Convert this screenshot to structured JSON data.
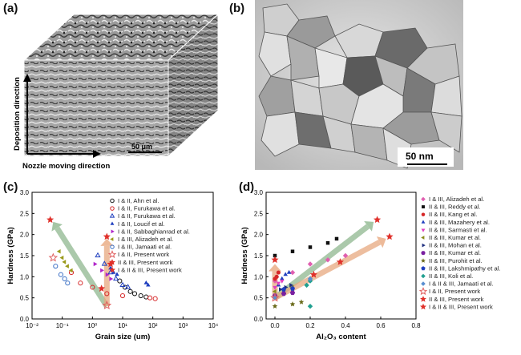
{
  "panels": {
    "a": {
      "label": "(a)",
      "scale_bar": "50 μm",
      "y_arrow_label": "Deposition direction",
      "x_arrow_label": "Nozzle moving direction"
    },
    "b": {
      "label": "(b)",
      "scale_bar": "50 nm"
    },
    "c": {
      "label": "(c)"
    },
    "d": {
      "label": "(d)"
    }
  },
  "chart_data": [
    {
      "type": "scatter",
      "panel": "c",
      "xlabel": "Grain size (um)",
      "ylabel": "Hardness (GPa)",
      "x_scale": "log",
      "xlim": [
        0.01,
        10000
      ],
      "ylim": [
        0,
        3.0
      ],
      "x_ticks": [
        "10⁻²",
        "10⁻¹",
        "10⁰",
        "10¹",
        "10²",
        "10³",
        "10⁴"
      ],
      "y_ticks": [
        "0.0",
        "0.5",
        "1.0",
        "1.5",
        "2.0",
        "2.5",
        "3.0"
      ],
      "legend_position": "top-right",
      "series": [
        {
          "name": "I & II, Ahn et al.",
          "color": "#111111",
          "marker": "circle-open",
          "points": [
            [
              8,
              0.9
            ],
            [
              12,
              0.75
            ],
            [
              18,
              0.65
            ],
            [
              25,
              0.6
            ],
            [
              40,
              0.55
            ],
            [
              60,
              0.52
            ]
          ]
        },
        {
          "name": "I & II, Furukawa et al.",
          "color": "#d62728",
          "marker": "circle-open",
          "points": [
            [
              0.2,
              1.1
            ],
            [
              0.4,
              0.85
            ],
            [
              1,
              0.75
            ],
            [
              3,
              0.6
            ],
            [
              10,
              0.55
            ],
            [
              80,
              0.5
            ],
            [
              120,
              0.48
            ]
          ]
        },
        {
          "name": "I & II, Furukawa et al.",
          "color": "#1f3fbf",
          "marker": "triangle-open",
          "points": [
            [
              1.5,
              1.5
            ],
            [
              2.5,
              1.3
            ],
            [
              4,
              1.1
            ],
            [
              6,
              0.95
            ],
            [
              10,
              0.8
            ],
            [
              15,
              0.75
            ]
          ]
        },
        {
          "name": "I & II, Loucif et al.",
          "color": "#1f3fbf",
          "marker": "triangle-up",
          "points": [
            [
              4,
              1.2
            ],
            [
              5,
              1.1
            ],
            [
              6.5,
              1.05
            ],
            [
              60,
              0.85
            ],
            [
              70,
              0.8
            ]
          ]
        },
        {
          "name": "I & II, Sabbaghianrad et al.",
          "color": "#b025c9",
          "marker": "triangle-right",
          "points": [
            [
              1.2,
              1.3
            ],
            [
              2,
              1.15
            ],
            [
              3,
              1.05
            ],
            [
              4,
              0.95
            ]
          ]
        },
        {
          "name": "I & III, Alizadeh et al.",
          "color": "#9a9a1a",
          "marker": "triangle-left",
          "points": [
            [
              0.08,
              1.6
            ],
            [
              0.1,
              1.45
            ],
            [
              0.12,
              1.35
            ],
            [
              0.15,
              1.25
            ],
            [
              0.2,
              1.15
            ]
          ]
        },
        {
          "name": "I & III, Jamaati et al.",
          "color": "#3a6fc4",
          "marker": "circle-open",
          "points": [
            [
              0.06,
              1.25
            ],
            [
              0.09,
              1.05
            ],
            [
              0.12,
              0.95
            ],
            [
              0.15,
              0.85
            ]
          ]
        },
        {
          "name": "I & II, Present work",
          "color": "#e06060",
          "marker": "star-open",
          "points": [
            [
              0.05,
              1.45
            ],
            [
              3,
              0.32
            ]
          ]
        },
        {
          "name": "II & III, Present work",
          "color": "#e0302a",
          "marker": "star-filled",
          "points": [
            [
              3,
              1.95
            ],
            [
              2,
              0.72
            ]
          ]
        },
        {
          "name": "I & II & III, Present work",
          "color": "#e0302a",
          "marker": "star-filled",
          "points": [
            [
              0.04,
              2.35
            ],
            [
              4,
              1.3
            ]
          ]
        }
      ],
      "arrows": [
        {
          "from": [
            3,
            0.3
          ],
          "to": [
            0.05,
            2.3
          ],
          "color": "#8fb88f"
        },
        {
          "from": [
            3,
            0.3
          ],
          "to": [
            3,
            1.9
          ],
          "color": "#e8a980"
        }
      ]
    },
    {
      "type": "scatter",
      "panel": "d",
      "xlabel": "Al₂O₃ content",
      "ylabel": "Hardness (GPa)",
      "xlim": [
        -0.05,
        0.8
      ],
      "ylim": [
        0,
        3.0
      ],
      "x_ticks": [
        "0.0",
        "0.2",
        "0.4",
        "0.6",
        "0.8"
      ],
      "y_ticks": [
        "0.0",
        "0.5",
        "1.0",
        "1.5",
        "2.0",
        "2.5",
        "3.0"
      ],
      "legend_position": "right",
      "series": [
        {
          "name": "I & III, Alizadeh et al.",
          "color": "#e05fb0",
          "marker": "diamond",
          "points": [
            [
              0.0,
              0.9
            ],
            [
              0.1,
              1.1
            ],
            [
              0.2,
              1.3
            ],
            [
              0.3,
              1.4
            ],
            [
              0.4,
              1.5
            ]
          ]
        },
        {
          "name": "II & III, Reddy et al.",
          "color": "#111111",
          "marker": "square",
          "points": [
            [
              0.0,
              1.5
            ],
            [
              0.1,
              1.6
            ],
            [
              0.2,
              1.7
            ],
            [
              0.3,
              1.8
            ],
            [
              0.35,
              1.9
            ]
          ]
        },
        {
          "name": "II & III, Kang et al.",
          "color": "#d62728",
          "marker": "circle",
          "points": [
            [
              0.0,
              0.95
            ],
            [
              0.01,
              1.0
            ],
            [
              0.02,
              1.1
            ]
          ]
        },
        {
          "name": "II & III, Mazahery et al.",
          "color": "#1f3fbf",
          "marker": "triangle-up",
          "points": [
            [
              0.02,
              0.8
            ],
            [
              0.04,
              0.95
            ],
            [
              0.06,
              1.05
            ],
            [
              0.08,
              1.1
            ]
          ]
        },
        {
          "name": "II & III, Sarmasti et al.",
          "color": "#e040c0",
          "marker": "triangle-down",
          "points": [
            [
              0.0,
              0.75
            ],
            [
              0.02,
              0.85
            ],
            [
              0.04,
              0.9
            ]
          ]
        },
        {
          "name": "II & III, Kumar et al.",
          "color": "#8a8a1a",
          "marker": "triangle-left",
          "points": [
            [
              0.0,
              0.65
            ],
            [
              0.05,
              0.7
            ],
            [
              0.1,
              0.75
            ]
          ]
        },
        {
          "name": "II & III, Mohan et al.",
          "color": "#1f2f7f",
          "marker": "triangle-right",
          "points": [
            [
              0.03,
              0.7
            ],
            [
              0.06,
              0.75
            ],
            [
              0.09,
              0.8
            ]
          ]
        },
        {
          "name": "II & III, Kumar et al.",
          "color": "#7a1fa0",
          "marker": "hexagon",
          "points": [
            [
              0.0,
              0.55
            ],
            [
              0.05,
              0.6
            ],
            [
              0.1,
              0.62
            ]
          ]
        },
        {
          "name": "II & III, Purohit et al.",
          "color": "#6a6a1a",
          "marker": "star",
          "points": [
            [
              0.0,
              0.3
            ],
            [
              0.1,
              0.35
            ],
            [
              0.15,
              0.4
            ]
          ]
        },
        {
          "name": "II & III, Lakshmipathy et al.",
          "color": "#1f3fbf",
          "marker": "pentagon",
          "points": [
            [
              0.05,
              0.7
            ],
            [
              0.1,
              0.72
            ]
          ]
        },
        {
          "name": "II & III, Koli et al.",
          "color": "#20a090",
          "marker": "diamond",
          "points": [
            [
              0.18,
              0.8
            ],
            [
              0.2,
              0.9
            ],
            [
              0.2,
              0.3
            ]
          ]
        },
        {
          "name": "I & II & III, Jamaati et al.",
          "color": "#5a8fd0",
          "marker": "diamond",
          "points": [
            [
              0.0,
              0.5
            ],
            [
              0.2,
              0.95
            ]
          ]
        },
        {
          "name": "I & II, Present work",
          "color": "#e06060",
          "marker": "star-open",
          "points": [
            [
              0.0,
              0.5
            ]
          ]
        },
        {
          "name": "II & III, Present work",
          "color": "#e0302a",
          "marker": "star-filled",
          "points": [
            [
              0.0,
              1.4
            ],
            [
              0.22,
              1.05
            ],
            [
              0.37,
              1.35
            ],
            [
              0.65,
              1.95
            ]
          ]
        },
        {
          "name": "I & II & III, Present work",
          "color": "#e0302a",
          "marker": "star-filled",
          "points": [
            [
              0.58,
              2.35
            ]
          ]
        }
      ],
      "arrows": [
        {
          "from": [
            0.0,
            0.5
          ],
          "to": [
            0.56,
            2.3
          ],
          "color": "#8fb88f"
        },
        {
          "from": [
            0.0,
            0.5
          ],
          "to": [
            0.63,
            1.9
          ],
          "color": "#e8a980"
        },
        {
          "from": [
            0.0,
            0.55
          ],
          "to": [
            0.0,
            1.3
          ],
          "color": "#e8a980"
        }
      ]
    }
  ]
}
